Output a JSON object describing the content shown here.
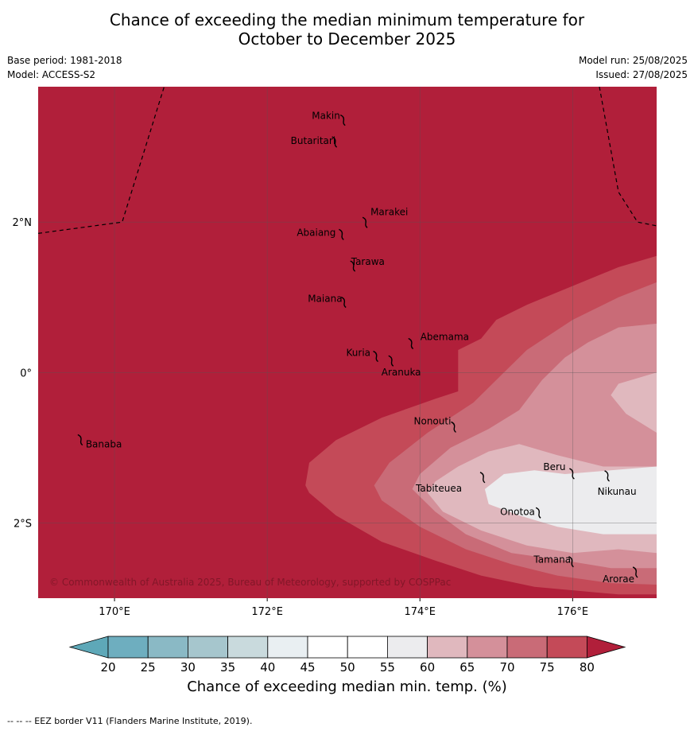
{
  "title": {
    "line1": "Chance of exceeding the median minimum temperature for",
    "line2": "October to December 2025"
  },
  "meta": {
    "base_period": "Base period: 1981-2018",
    "model": "Model: ACCESS-S2",
    "model_run": "Model run: 25/08/2025",
    "issued": "Issued: 27/08/2025"
  },
  "map": {
    "lon_range": [
      169.0,
      177.1
    ],
    "lat_range": [
      -3.0,
      3.8
    ],
    "lon_ticks": [
      {
        "v": 170,
        "label": "170°E"
      },
      {
        "v": 172,
        "label": "172°E"
      },
      {
        "v": 174,
        "label": "174°E"
      },
      {
        "v": 176,
        "label": "176°E"
      }
    ],
    "lat_ticks": [
      {
        "v": 2,
        "label": "2°N"
      },
      {
        "v": 0,
        "label": "0°"
      },
      {
        "v": -2,
        "label": "2°S"
      }
    ],
    "background_band": "80",
    "bands": [
      {
        "level": "75",
        "color": "#c44a58",
        "ring": [
          [
            177.1,
            1.55
          ],
          [
            176.6,
            1.4
          ],
          [
            175.4,
            0.9
          ],
          [
            175.0,
            0.7
          ],
          [
            174.8,
            0.45
          ],
          [
            174.5,
            0.3
          ],
          [
            174.5,
            -0.25
          ],
          [
            174.2,
            -0.35
          ],
          [
            173.5,
            -0.6
          ],
          [
            172.9,
            -0.9
          ],
          [
            172.55,
            -1.2
          ],
          [
            172.5,
            -1.5
          ],
          [
            172.55,
            -1.6
          ],
          [
            172.9,
            -1.9
          ],
          [
            173.5,
            -2.25
          ],
          [
            174.2,
            -2.5
          ],
          [
            174.8,
            -2.7
          ],
          [
            175.5,
            -2.85
          ],
          [
            176.6,
            -2.95
          ],
          [
            177.1,
            -2.95
          ]
        ]
      },
      {
        "level": "70",
        "color": "#c96b77",
        "ring": [
          [
            177.1,
            1.2
          ],
          [
            176.6,
            1.0
          ],
          [
            176.0,
            0.7
          ],
          [
            175.7,
            0.5
          ],
          [
            175.4,
            0.3
          ],
          [
            175.1,
            0.0
          ],
          [
            174.7,
            -0.4
          ],
          [
            174.1,
            -0.8
          ],
          [
            173.6,
            -1.2
          ],
          [
            173.4,
            -1.5
          ],
          [
            173.5,
            -1.7
          ],
          [
            174.0,
            -2.05
          ],
          [
            174.6,
            -2.35
          ],
          [
            175.2,
            -2.55
          ],
          [
            175.8,
            -2.7
          ],
          [
            176.5,
            -2.8
          ],
          [
            177.1,
            -2.82
          ]
        ]
      },
      {
        "level": "65",
        "color": "#d4909a",
        "ring": [
          [
            177.1,
            0.65
          ],
          [
            176.6,
            0.6
          ],
          [
            176.2,
            0.4
          ],
          [
            175.9,
            0.2
          ],
          [
            175.6,
            -0.1
          ],
          [
            175.3,
            -0.5
          ],
          [
            174.9,
            -0.75
          ],
          [
            174.4,
            -1.0
          ],
          [
            174.0,
            -1.35
          ],
          [
            173.9,
            -1.55
          ],
          [
            174.2,
            -1.85
          ],
          [
            174.6,
            -2.15
          ],
          [
            175.2,
            -2.4
          ],
          [
            175.9,
            -2.5
          ],
          [
            176.5,
            -2.6
          ],
          [
            177.1,
            -2.6
          ]
        ]
      },
      {
        "level": "60",
        "color": "#e0b8be",
        "ring": [
          [
            177.1,
            0.0
          ],
          [
            176.6,
            -0.15
          ],
          [
            176.5,
            -0.3
          ],
          [
            176.7,
            -0.55
          ],
          [
            177.1,
            -0.8
          ],
          [
            177.1,
            -1.25
          ],
          [
            176.4,
            -1.25
          ],
          [
            175.8,
            -1.1
          ],
          [
            175.3,
            -0.95
          ],
          [
            174.9,
            -1.05
          ],
          [
            174.5,
            -1.25
          ],
          [
            174.2,
            -1.45
          ],
          [
            174.1,
            -1.6
          ],
          [
            174.3,
            -1.85
          ],
          [
            174.8,
            -2.1
          ],
          [
            175.4,
            -2.3
          ],
          [
            176.0,
            -2.4
          ],
          [
            176.6,
            -2.35
          ],
          [
            177.1,
            -2.4
          ]
        ]
      },
      {
        "level": "55",
        "color": "#ececee",
        "ring": [
          [
            177.1,
            -1.25
          ],
          [
            176.5,
            -1.3
          ],
          [
            175.9,
            -1.35
          ],
          [
            175.5,
            -1.3
          ],
          [
            175.1,
            -1.35
          ],
          [
            174.85,
            -1.55
          ],
          [
            174.9,
            -1.75
          ],
          [
            175.3,
            -1.9
          ],
          [
            175.8,
            -2.05
          ],
          [
            176.4,
            -2.15
          ],
          [
            177.1,
            -2.15
          ]
        ]
      }
    ],
    "eez_lines": [
      [
        [
          169.0,
          1.85
        ],
        [
          170.1,
          2.0
        ],
        [
          170.65,
          3.8
        ]
      ],
      [
        [
          176.35,
          3.8
        ],
        [
          176.6,
          2.4
        ],
        [
          176.85,
          2.0
        ],
        [
          177.1,
          1.95
        ]
      ]
    ],
    "islands": [
      {
        "name": "Makin",
        "lon": 172.99,
        "lat": 3.37,
        "dx": -39,
        "dy": 0
      },
      {
        "name": "Butaritari",
        "lon": 172.88,
        "lat": 3.08,
        "dx": -55,
        "dy": 4
      },
      {
        "name": "Marakei",
        "lon": 173.28,
        "lat": 2.01,
        "dx": 7,
        "dy": -8
      },
      {
        "name": "Abaiang",
        "lon": 172.97,
        "lat": 1.85,
        "dx": -56,
        "dy": 3
      },
      {
        "name": "Tarawa",
        "lon": 173.12,
        "lat": 1.43,
        "dx": -2,
        "dy": 0
      },
      {
        "name": "Maiana",
        "lon": 173.0,
        "lat": 0.95,
        "dx": -45,
        "dy": 1
      },
      {
        "name": "Abemama",
        "lon": 173.88,
        "lat": 0.4,
        "dx": 12,
        "dy": -3
      },
      {
        "name": "Kuria",
        "lon": 173.42,
        "lat": 0.23,
        "dx": -37,
        "dy": 1
      },
      {
        "name": "Aranuka",
        "lon": 173.62,
        "lat": 0.17,
        "dx": -12,
        "dy": 20
      },
      {
        "name": "Nonouti",
        "lon": 174.44,
        "lat": -0.71,
        "dx": -50,
        "dy": -2
      },
      {
        "name": "Banaba",
        "lon": 169.55,
        "lat": -0.88,
        "dx": 7,
        "dy": 11
      },
      {
        "name": "Tabiteuea",
        "lon": 174.82,
        "lat": -1.38,
        "dx": -84,
        "dy": 19
      },
      {
        "name": "Beru",
        "lon": 175.99,
        "lat": -1.33,
        "dx": -36,
        "dy": -3
      },
      {
        "name": "Nikunau",
        "lon": 176.45,
        "lat": -1.36,
        "dx": -12,
        "dy": 25
      },
      {
        "name": "Onotoa",
        "lon": 175.55,
        "lat": -1.85,
        "dx": -48,
        "dy": 4
      },
      {
        "name": "Tamana",
        "lon": 175.98,
        "lat": -2.5,
        "dx": -47,
        "dy": 3
      },
      {
        "name": "Arorae",
        "lon": 176.82,
        "lat": -2.64,
        "dx": -41,
        "dy": 14
      }
    ],
    "copyright": "© Commonwealth of Australia 2025, Bureau of Meteorology, supported by COSPPac"
  },
  "colorbar": {
    "colors": [
      "#5ea8b8",
      "#6eaebf",
      "#8ab9c5",
      "#a6c6cd",
      "#c9dadd",
      "#e9eff2",
      "#ffffff",
      "#ffffff",
      "#ececee",
      "#e0b8be",
      "#d4909a",
      "#c96b77",
      "#c44a58",
      "#b11f3a"
    ],
    "tick_labels": [
      "20",
      "25",
      "30",
      "35",
      "40",
      "45",
      "50",
      "55",
      "60",
      "65",
      "70",
      "75",
      "80"
    ],
    "label": "Chance of exceeding median min. temp. (%)",
    "band_colors": {
      "80": "#b11f3a"
    }
  },
  "footer": "-- -- -- EEZ border V11 (Flanders Marine Institute, 2019)."
}
